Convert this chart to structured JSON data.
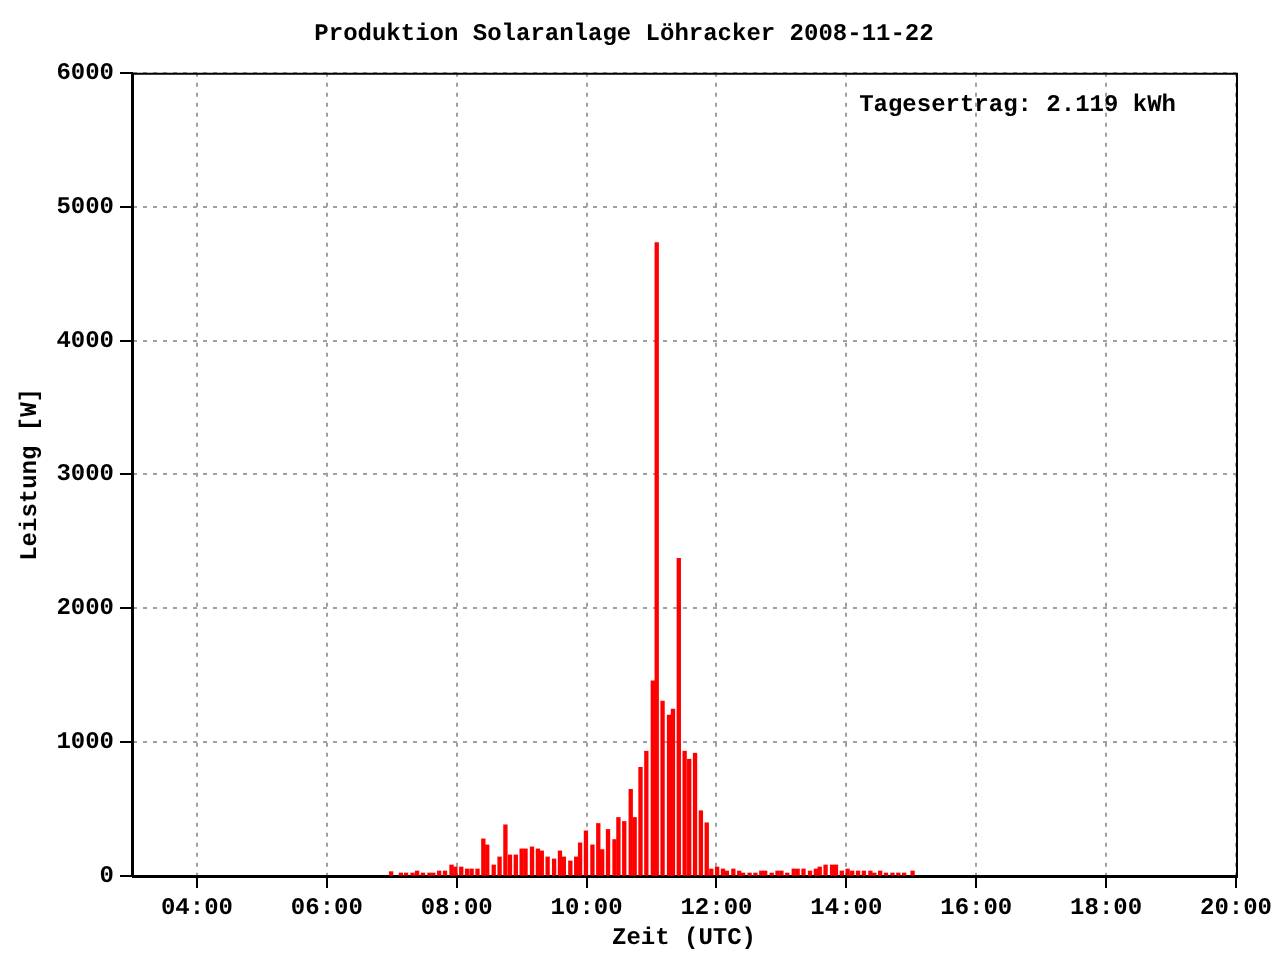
{
  "chart_data": {
    "type": "bar",
    "title": "Produktion Solaranlage Löhracker 2008-11-22",
    "xlabel": "Zeit (UTC)",
    "ylabel": "Leistung [W]",
    "annotations": [
      "Tagesertrag: 2.119 kWh"
    ],
    "x": [
      6.99,
      7.14,
      7.22,
      7.32,
      7.39,
      7.48,
      7.58,
      7.64,
      7.73,
      7.82,
      7.92,
      7.98,
      8.07,
      8.16,
      8.23,
      8.32,
      8.41,
      8.47,
      8.57,
      8.66,
      8.75,
      8.82,
      8.91,
      9.0,
      9.06,
      9.16,
      9.25,
      9.31,
      9.4,
      9.5,
      9.59,
      9.65,
      9.75,
      9.84,
      9.9,
      9.99,
      10.09,
      10.18,
      10.24,
      10.33,
      10.43,
      10.49,
      10.58,
      10.68,
      10.74,
      10.83,
      10.92,
      11.02,
      11.08,
      11.17,
      11.27,
      11.33,
      11.42,
      11.51,
      11.58,
      11.67,
      11.76,
      11.85,
      11.92,
      12.01,
      12.1,
      12.16,
      12.26,
      12.35,
      12.41,
      12.51,
      12.6,
      12.69,
      12.75,
      12.85,
      12.94,
      13.0,
      13.09,
      13.19,
      13.25,
      13.34,
      13.44,
      13.53,
      13.59,
      13.68,
      13.78,
      13.84,
      13.93,
      14.02,
      14.09,
      14.18,
      14.27,
      14.37,
      14.43,
      14.52,
      14.61,
      14.71,
      14.8,
      14.89,
      15.02
    ],
    "values": [
      30,
      20,
      20,
      20,
      35,
      20,
      20,
      20,
      35,
      35,
      80,
      65,
      65,
      50,
      50,
      50,
      275,
      230,
      80,
      140,
      380,
      155,
      155,
      200,
      200,
      215,
      200,
      185,
      140,
      125,
      185,
      140,
      110,
      140,
      245,
      335,
      230,
      390,
      195,
      345,
      270,
      435,
      405,
      645,
      435,
      810,
      930,
      1455,
      4730,
      1305,
      1200,
      1245,
      2370,
      930,
      870,
      915,
      485,
      395,
      50,
      65,
      50,
      35,
      50,
      35,
      20,
      20,
      20,
      35,
      35,
      20,
      35,
      35,
      20,
      50,
      50,
      50,
      35,
      50,
      65,
      80,
      80,
      80,
      35,
      50,
      35,
      35,
      35,
      35,
      20,
      35,
      20,
      20,
      20,
      20,
      35
    ],
    "color": "#ff0000",
    "xlim": [
      3,
      20
    ],
    "xticks": [
      {
        "value": 4,
        "label": "04:00"
      },
      {
        "value": 6,
        "label": "06:00"
      },
      {
        "value": 8,
        "label": "08:00"
      },
      {
        "value": 10,
        "label": "10:00"
      },
      {
        "value": 12,
        "label": "12:00"
      },
      {
        "value": 14,
        "label": "14:00"
      },
      {
        "value": 16,
        "label": "16:00"
      },
      {
        "value": 18,
        "label": "18:00"
      },
      {
        "value": 20,
        "label": "20:00"
      }
    ],
    "ylim": [
      0,
      6000
    ],
    "yticks": [
      0,
      1000,
      2000,
      3000,
      4000,
      5000,
      6000
    ],
    "grid": true,
    "legend": false
  }
}
